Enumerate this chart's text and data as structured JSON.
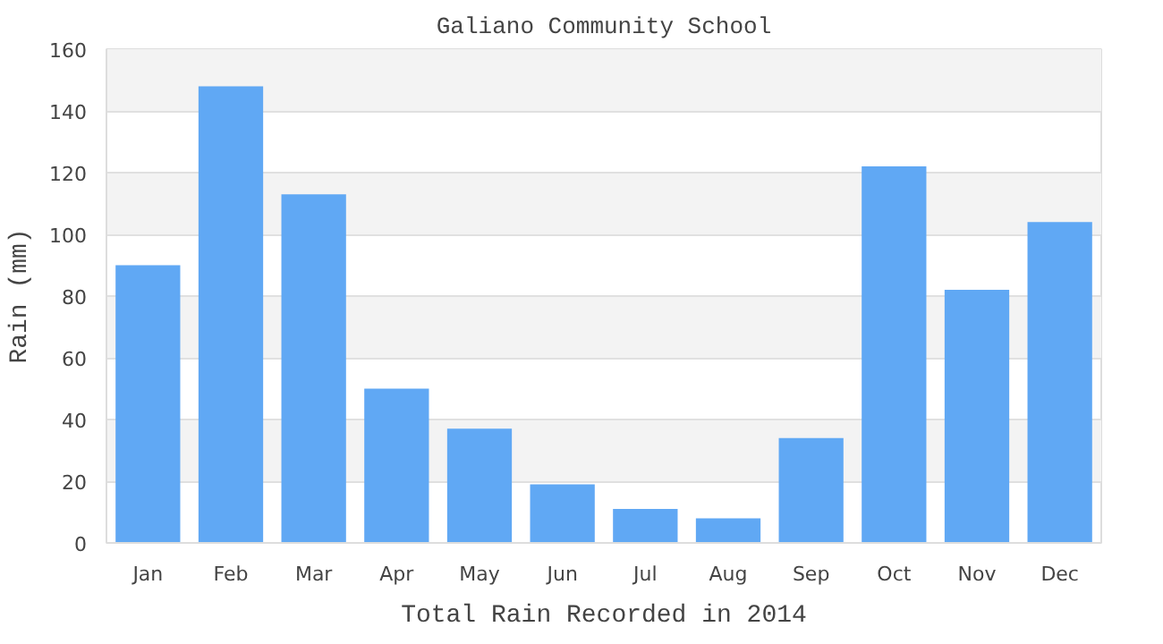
{
  "chart_data": {
    "type": "bar",
    "title": "Galiano Community School",
    "xlabel": "Total Rain Recorded in 2014",
    "ylabel": "Rain (mm)",
    "categories": [
      "Jan",
      "Feb",
      "Mar",
      "Apr",
      "May",
      "Jun",
      "Jul",
      "Aug",
      "Sep",
      "Oct",
      "Nov",
      "Dec"
    ],
    "values": [
      90,
      148,
      113,
      50,
      37,
      19,
      11,
      8,
      34,
      122,
      82,
      104
    ],
    "color": "#60a8f4",
    "ylim": [
      0,
      160
    ],
    "yticks": [
      0,
      20,
      40,
      60,
      80,
      100,
      120,
      140,
      160
    ],
    "grid": "y"
  }
}
